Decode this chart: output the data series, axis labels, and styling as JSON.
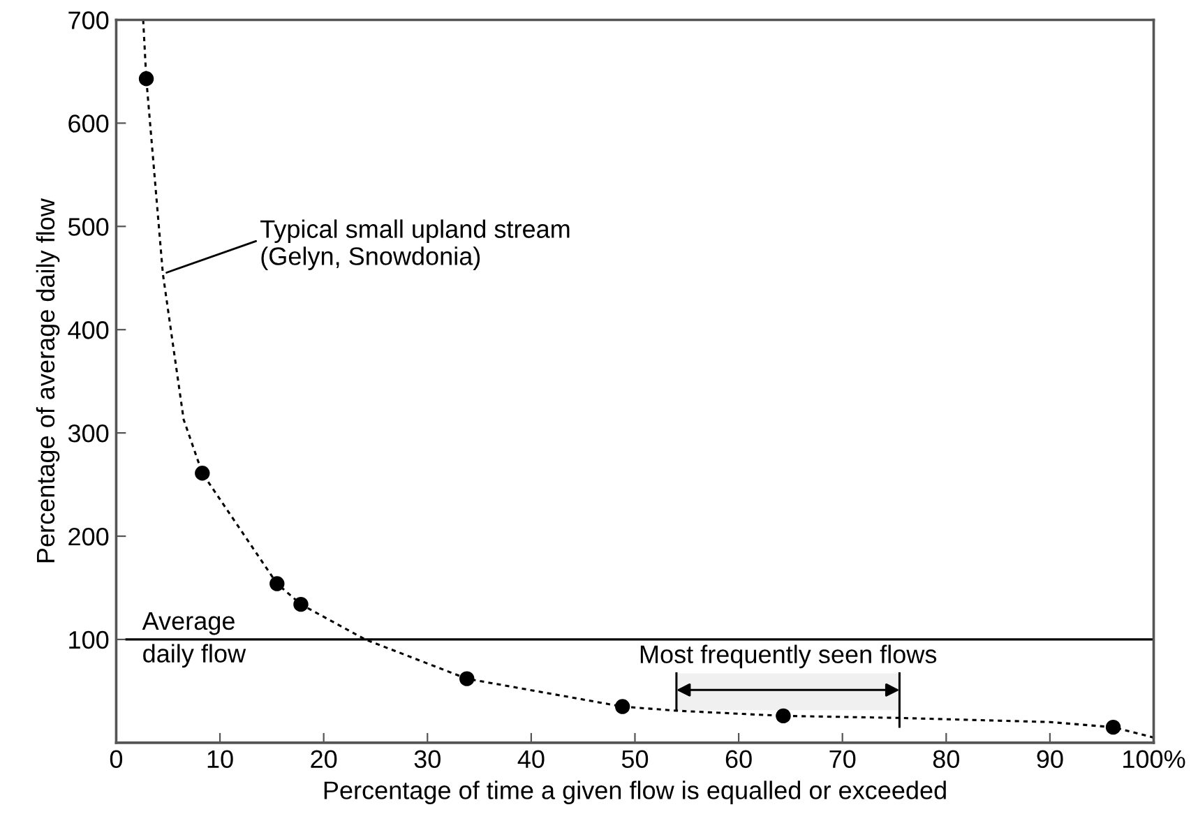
{
  "chart_data": {
    "type": "scatter",
    "xlabel": "Percentage of time a given flow is equalled or exceeded",
    "ylabel": "Percentage of average daily flow",
    "xlim": [
      0,
      100
    ],
    "ylim": [
      0,
      700
    ],
    "xticks": [
      0,
      10,
      20,
      30,
      40,
      50,
      60,
      70,
      80,
      90,
      {
        "value": 100,
        "label": "100%"
      }
    ],
    "yticks": [
      100,
      200,
      300,
      400,
      500,
      600,
      700
    ],
    "grid": false,
    "legend": false,
    "series": [
      {
        "type": "line",
        "color": "#000000",
        "line_style": "dotted",
        "marker": "none",
        "x": [
          2.6,
          2.9,
          4.5,
          6.5,
          8.3,
          15.5,
          17.8,
          24,
          33.8,
          48.8,
          54,
          64.3,
          75.5,
          90,
          96.1,
          100
        ],
        "values": [
          700,
          643,
          454,
          313,
          261,
          154,
          134,
          100,
          62,
          35,
          31,
          26,
          24,
          20,
          15,
          5
        ]
      },
      {
        "color": "#000000",
        "marker": "circle",
        "x": [
          2.9,
          8.3,
          15.5,
          17.8,
          33.8,
          48.8,
          64.3,
          96.1
        ],
        "values": [
          643,
          261,
          154,
          134,
          62,
          35,
          26,
          15
        ]
      }
    ],
    "ref_lines": [
      {
        "axis": "y",
        "value": 100,
        "label": "Average\ndaily flow",
        "color": "#000000",
        "line_style": "solid"
      }
    ],
    "bands": [
      {
        "axis": "x",
        "from": 54,
        "to": 75.5,
        "label": "Most frequently seen flows",
        "color": "#f0f0f0"
      }
    ],
    "annotations": [
      {
        "text": "Typical small upland stream\n(Gelyn, Snowdonia)",
        "x": 4.5,
        "y": 454
      }
    ]
  }
}
